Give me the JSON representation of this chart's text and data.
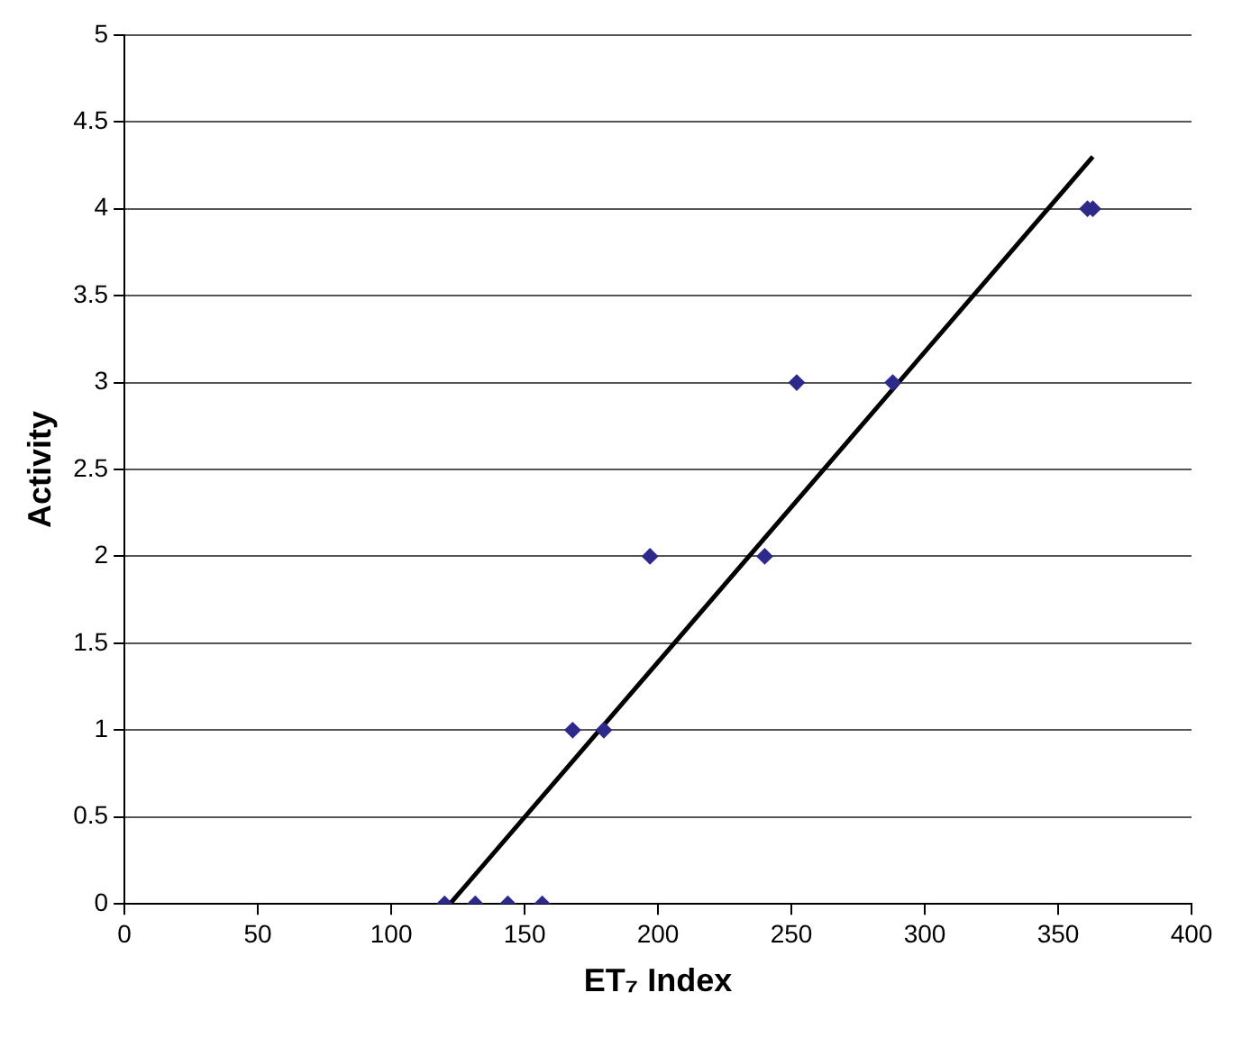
{
  "chart_data": {
    "type": "scatter",
    "xlabel": "ET₇ Index",
    "ylabel": "Activity",
    "xlim": [
      0,
      400
    ],
    "xticks": [
      0,
      50,
      100,
      150,
      200,
      250,
      300,
      350,
      400
    ],
    "ylim": [
      0,
      5
    ],
    "yticks": [
      0,
      0.5,
      1,
      1.5,
      2,
      2.5,
      3,
      3.5,
      4,
      4.5,
      5
    ],
    "grid": "y",
    "legend": false,
    "marker": "diamond",
    "series": [
      {
        "color": "#2e2a8c",
        "x": [
          120,
          131.5,
          143.7,
          156.6,
          168,
          179.7,
          197,
          240,
          252,
          288,
          361,
          363
        ],
        "values": [
          0,
          0,
          0,
          0,
          1,
          1,
          2,
          2,
          3,
          3,
          4,
          4
        ]
      },
      {
        "type": "line",
        "color": "#000000",
        "x": [
          122,
          363
        ],
        "values": [
          0,
          4.3
        ],
        "marker": "none",
        "line_style": "solid"
      }
    ]
  }
}
